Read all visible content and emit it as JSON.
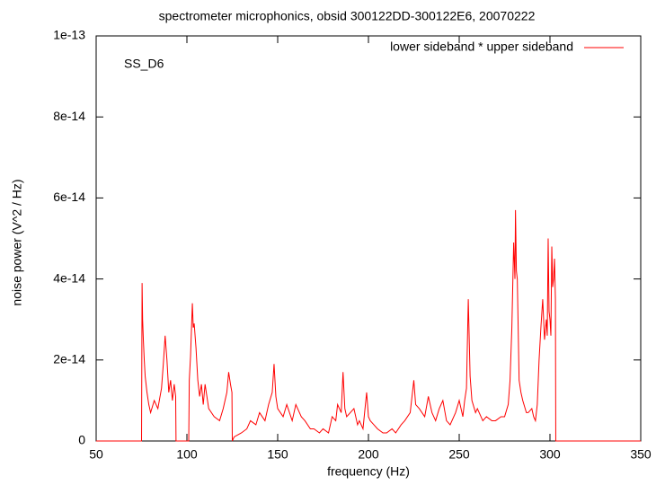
{
  "chart_data": {
    "type": "line",
    "title": "spectrometer microphonics, obsid 300122DD-300122E6, 20070222",
    "annotation": "SS_D6",
    "x_label": "frequency (Hz)",
    "y_label": "noise power (V^2 / Hz)",
    "xlim": [
      50,
      350
    ],
    "xticks": [
      50,
      100,
      150,
      200,
      250,
      300,
      350
    ],
    "ylim": [
      0,
      1e-13
    ],
    "yticks": [
      0,
      2e-14,
      4e-14,
      6e-14,
      8e-14,
      1e-13
    ],
    "legend": "top-right",
    "x": [
      50,
      75,
      75.3,
      75.6,
      76,
      76.5,
      77,
      78,
      79,
      80,
      82,
      84,
      86,
      87,
      88,
      89,
      90,
      91,
      92,
      93,
      93.8,
      94,
      101,
      101.3,
      102,
      103,
      103.5,
      104,
      105,
      106,
      107,
      108,
      109,
      110,
      112,
      115,
      118,
      120,
      122,
      123,
      124,
      124.8,
      125,
      126,
      130,
      133,
      135,
      138,
      140,
      143,
      145,
      147,
      148,
      149,
      150,
      153,
      155,
      158,
      160,
      163,
      165,
      168,
      170,
      173,
      175,
      178,
      180,
      182,
      183,
      185,
      186,
      187,
      188,
      190,
      192,
      194,
      195,
      197,
      199,
      200,
      201,
      203,
      205,
      208,
      210,
      213,
      215,
      218,
      220,
      223,
      225,
      226,
      228,
      231,
      233,
      235,
      237,
      239,
      241,
      243,
      245,
      248,
      250,
      252,
      253,
      254,
      255,
      256,
      257,
      259,
      260,
      263,
      265,
      268,
      270,
      273,
      275,
      277,
      278,
      279,
      280,
      280.7,
      281,
      281.5,
      282,
      283,
      284,
      285,
      287,
      288,
      290,
      291,
      292,
      293,
      294,
      295,
      296,
      297,
      298,
      298.5,
      299,
      299.5,
      300,
      300.5,
      301,
      301.5,
      302,
      302.5,
      303,
      303.2,
      350
    ],
    "series": [
      {
        "name": "lower sideband * upper sideband",
        "color": "#ff0000",
        "values": [
          0,
          0,
          3.9e-14,
          3e-14,
          2.5e-14,
          2e-14,
          1.6e-14,
          1.2e-14,
          9e-15,
          7e-15,
          1e-14,
          8e-15,
          1.3e-14,
          1.9e-14,
          2.6e-14,
          2e-14,
          1.2e-14,
          1.5e-14,
          1e-14,
          1.4e-14,
          1.1e-14,
          0,
          0,
          1.5e-14,
          2.1e-14,
          3.4e-14,
          2.8e-14,
          2.9e-14,
          2.3e-14,
          1.5e-14,
          1.1e-14,
          1.4e-14,
          9e-15,
          1.4e-14,
          8e-15,
          6e-15,
          5e-15,
          8e-15,
          1.2e-14,
          1.7e-14,
          1.4e-14,
          1.2e-14,
          0,
          1e-15,
          2e-15,
          3e-15,
          5e-15,
          4e-15,
          7e-15,
          5e-15,
          9e-15,
          1.2e-14,
          1.9e-14,
          1.1e-14,
          8e-15,
          6e-15,
          9e-15,
          5e-15,
          9e-15,
          6e-15,
          5e-15,
          3e-15,
          3e-15,
          2e-15,
          3e-15,
          2e-15,
          6e-15,
          5e-15,
          9e-15,
          7e-15,
          1.7e-14,
          8e-15,
          6e-15,
          7e-15,
          8e-15,
          4e-15,
          5e-15,
          3e-15,
          1.2e-14,
          6e-15,
          5e-15,
          4e-15,
          3e-15,
          2e-15,
          2e-15,
          3e-15,
          2e-15,
          4e-15,
          5e-15,
          7e-15,
          1.5e-14,
          9e-15,
          8e-15,
          6e-15,
          1.1e-14,
          7e-15,
          5e-15,
          8e-15,
          1e-14,
          5e-15,
          4e-15,
          7e-15,
          1e-14,
          6e-15,
          1e-14,
          1.3e-14,
          3.5e-14,
          1.6e-14,
          1e-14,
          7e-15,
          8e-15,
          5e-15,
          6e-15,
          5e-15,
          5e-15,
          6e-15,
          6e-15,
          9e-15,
          1.5e-14,
          2.8e-14,
          4.9e-14,
          4e-14,
          5.7e-14,
          4.2e-14,
          4e-14,
          1.5e-14,
          1.2e-14,
          1e-14,
          7e-15,
          7e-15,
          8e-15,
          6e-15,
          5e-15,
          9e-15,
          2e-14,
          2.8e-14,
          3.5e-14,
          2.5e-14,
          3e-14,
          2.6e-14,
          5e-14,
          3.2e-14,
          3e-14,
          2.6e-14,
          4.8e-14,
          3.8e-14,
          4e-14,
          4.5e-14,
          3.5e-14,
          0,
          0
        ]
      }
    ]
  }
}
